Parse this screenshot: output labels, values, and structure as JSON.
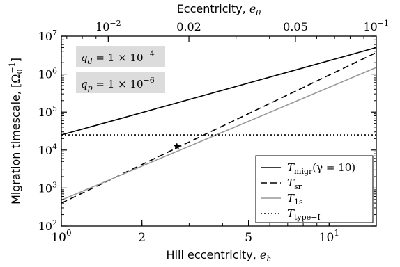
{
  "chart_data": {
    "type": "line",
    "xlabel": "Hill eccentricity, e_h",
    "ylabel": "Migration timescale, [Ω0^-1]",
    "top_axis_label": "Eccentricity, e0",
    "x_scale": "log",
    "y_scale": "log",
    "xlim": [
      1,
      15
    ],
    "ylim": [
      100,
      10000000
    ],
    "grid": false,
    "legend_position": "bottom-right",
    "x_ticks": [
      {
        "value": 1,
        "label": "10^0"
      },
      {
        "value": 2,
        "label": "2"
      },
      {
        "value": 5,
        "label": "5"
      },
      {
        "value": 10,
        "label": "10^1"
      }
    ],
    "y_ticks": [
      {
        "value": 100,
        "label": "10^2"
      },
      {
        "value": 1000,
        "label": "10^3"
      },
      {
        "value": 10000,
        "label": "10^4"
      },
      {
        "value": 100000,
        "label": "10^5"
      },
      {
        "value": 1000000,
        "label": "10^6"
      },
      {
        "value": 10000000,
        "label": "10^7"
      }
    ],
    "top_ticks": [
      {
        "value": 0.01,
        "label": "10^-2"
      },
      {
        "value": 0.02,
        "label": "0.02"
      },
      {
        "value": 0.05,
        "label": "0.05"
      },
      {
        "value": 0.1,
        "label": "10^-1"
      }
    ],
    "top_axis_e0_at_eh1": 0.00668,
    "annotations": [
      {
        "text": "q_d = 1 × 10^-4"
      },
      {
        "text": "q_p = 1 × 10^-6"
      }
    ],
    "series": [
      {
        "name": "T_migr(γ = 10)",
        "style": "solid",
        "color": "#000000",
        "x": [
          1,
          15
        ],
        "y": [
          25000,
          5000000
        ]
      },
      {
        "name": "T_sr",
        "style": "dashed",
        "color": "#000000",
        "x": [
          1,
          15
        ],
        "y": [
          400,
          3700000
        ]
      },
      {
        "name": "T_1s",
        "style": "solid",
        "color": "#999999",
        "x": [
          1,
          15
        ],
        "y": [
          480,
          1500000
        ]
      },
      {
        "name": "T_type-I",
        "style": "dotted",
        "color": "#000000",
        "x": [
          1,
          15
        ],
        "y": [
          25000,
          25000
        ]
      }
    ],
    "markers": [
      {
        "shape": "star",
        "x": 2.7,
        "y": 12500
      }
    ]
  }
}
